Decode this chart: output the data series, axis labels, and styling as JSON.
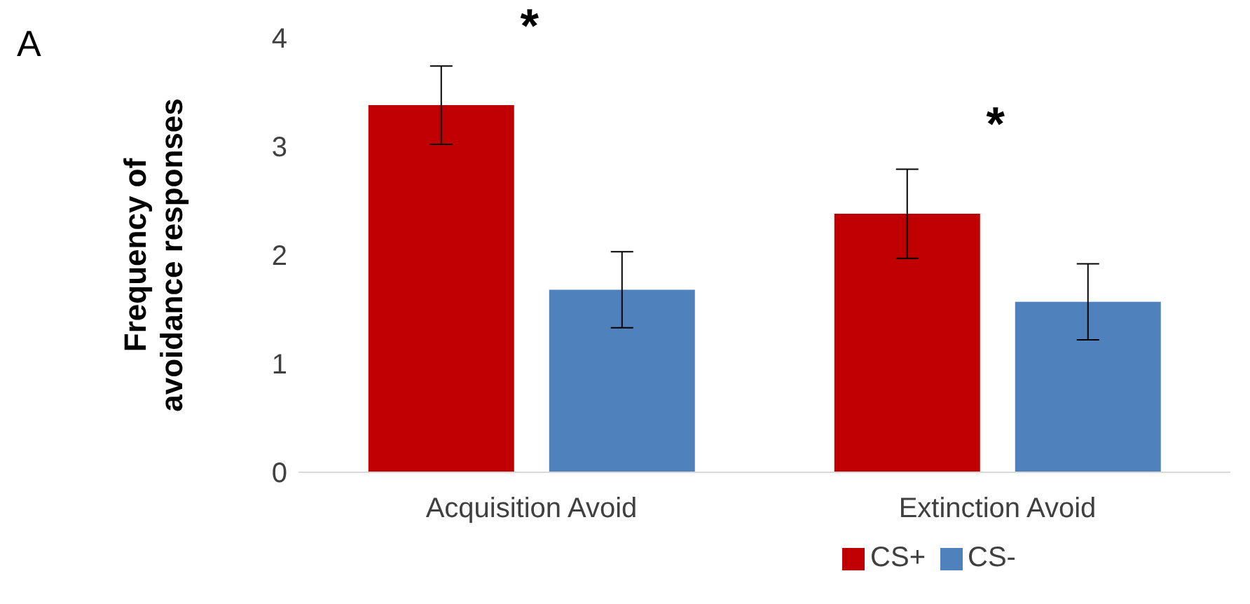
{
  "chart_data": {
    "type": "bar",
    "ylabel": "Frequency of avoidance responses",
    "categories": [
      "Acquisition Avoid",
      "Extinction Avoid"
    ],
    "series": [
      {
        "name": "CS+",
        "color": "#c00000",
        "values": [
          3.38,
          2.38
        ],
        "errors": [
          0.36,
          0.41
        ]
      },
      {
        "name": "CS-",
        "color": "#4f81bd",
        "values": [
          1.68,
          1.57
        ],
        "errors": [
          0.35,
          0.35
        ]
      }
    ],
    "ylim": [
      0,
      4
    ],
    "yticks": [
      0,
      1,
      2,
      3,
      4
    ],
    "grid": false,
    "legend": "bottom",
    "annotations": [
      "A",
      "*",
      "*"
    ]
  }
}
